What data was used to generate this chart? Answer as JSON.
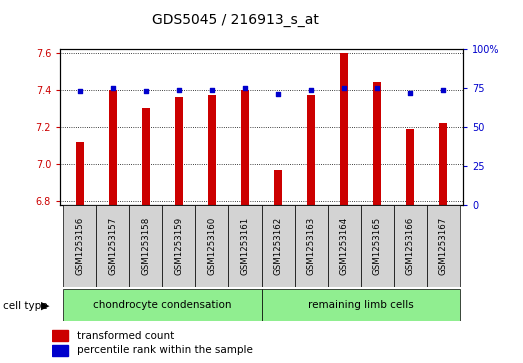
{
  "title": "GDS5045 / 216913_s_at",
  "samples": [
    "GSM1253156",
    "GSM1253157",
    "GSM1253158",
    "GSM1253159",
    "GSM1253160",
    "GSM1253161",
    "GSM1253162",
    "GSM1253163",
    "GSM1253164",
    "GSM1253165",
    "GSM1253166",
    "GSM1253167"
  ],
  "transformed_count": [
    7.12,
    7.4,
    7.3,
    7.36,
    7.37,
    7.4,
    6.97,
    7.37,
    7.6,
    7.44,
    7.19,
    7.22
  ],
  "percentile_rank": [
    73,
    75,
    73,
    74,
    74,
    75,
    71,
    74,
    75,
    75,
    72,
    74
  ],
  "ylim_left": [
    6.78,
    7.62
  ],
  "ylim_right": [
    0,
    100
  ],
  "yticks_left": [
    6.8,
    7.0,
    7.2,
    7.4,
    7.6
  ],
  "yticks_right": [
    0,
    25,
    50,
    75,
    100
  ],
  "bar_color": "#cc0000",
  "dot_color": "#0000cc",
  "group1_label": "chondrocyte condensation",
  "group1_count": 6,
  "group2_label": "remaining limb cells",
  "group2_count": 6,
  "group_color": "#90ee90",
  "cell_type_label": "cell type",
  "legend1": "transformed count",
  "legend2": "percentile rank within the sample",
  "sample_bg": "#d3d3d3",
  "plot_bg": "#ffffff"
}
